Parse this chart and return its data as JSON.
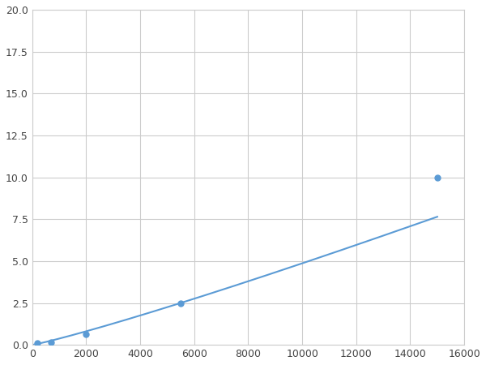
{
  "x_points": [
    200,
    700,
    2000,
    5500,
    15000
  ],
  "y_points": [
    0.1,
    0.15,
    0.65,
    2.5,
    10.0
  ],
  "line_color": "#5b9bd5",
  "marker_color": "#5b9bd5",
  "marker_size": 5,
  "xlim": [
    0,
    16000
  ],
  "ylim": [
    0,
    20
  ],
  "xticks": [
    0,
    2000,
    4000,
    6000,
    8000,
    10000,
    12000,
    14000,
    16000
  ],
  "yticks": [
    0.0,
    2.5,
    5.0,
    7.5,
    10.0,
    12.5,
    15.0,
    17.5,
    20.0
  ],
  "grid": true,
  "background_color": "#ffffff",
  "plot_bg_color": "#ffffff",
  "grid_color": "#cccccc",
  "spine_color": "#cccccc"
}
